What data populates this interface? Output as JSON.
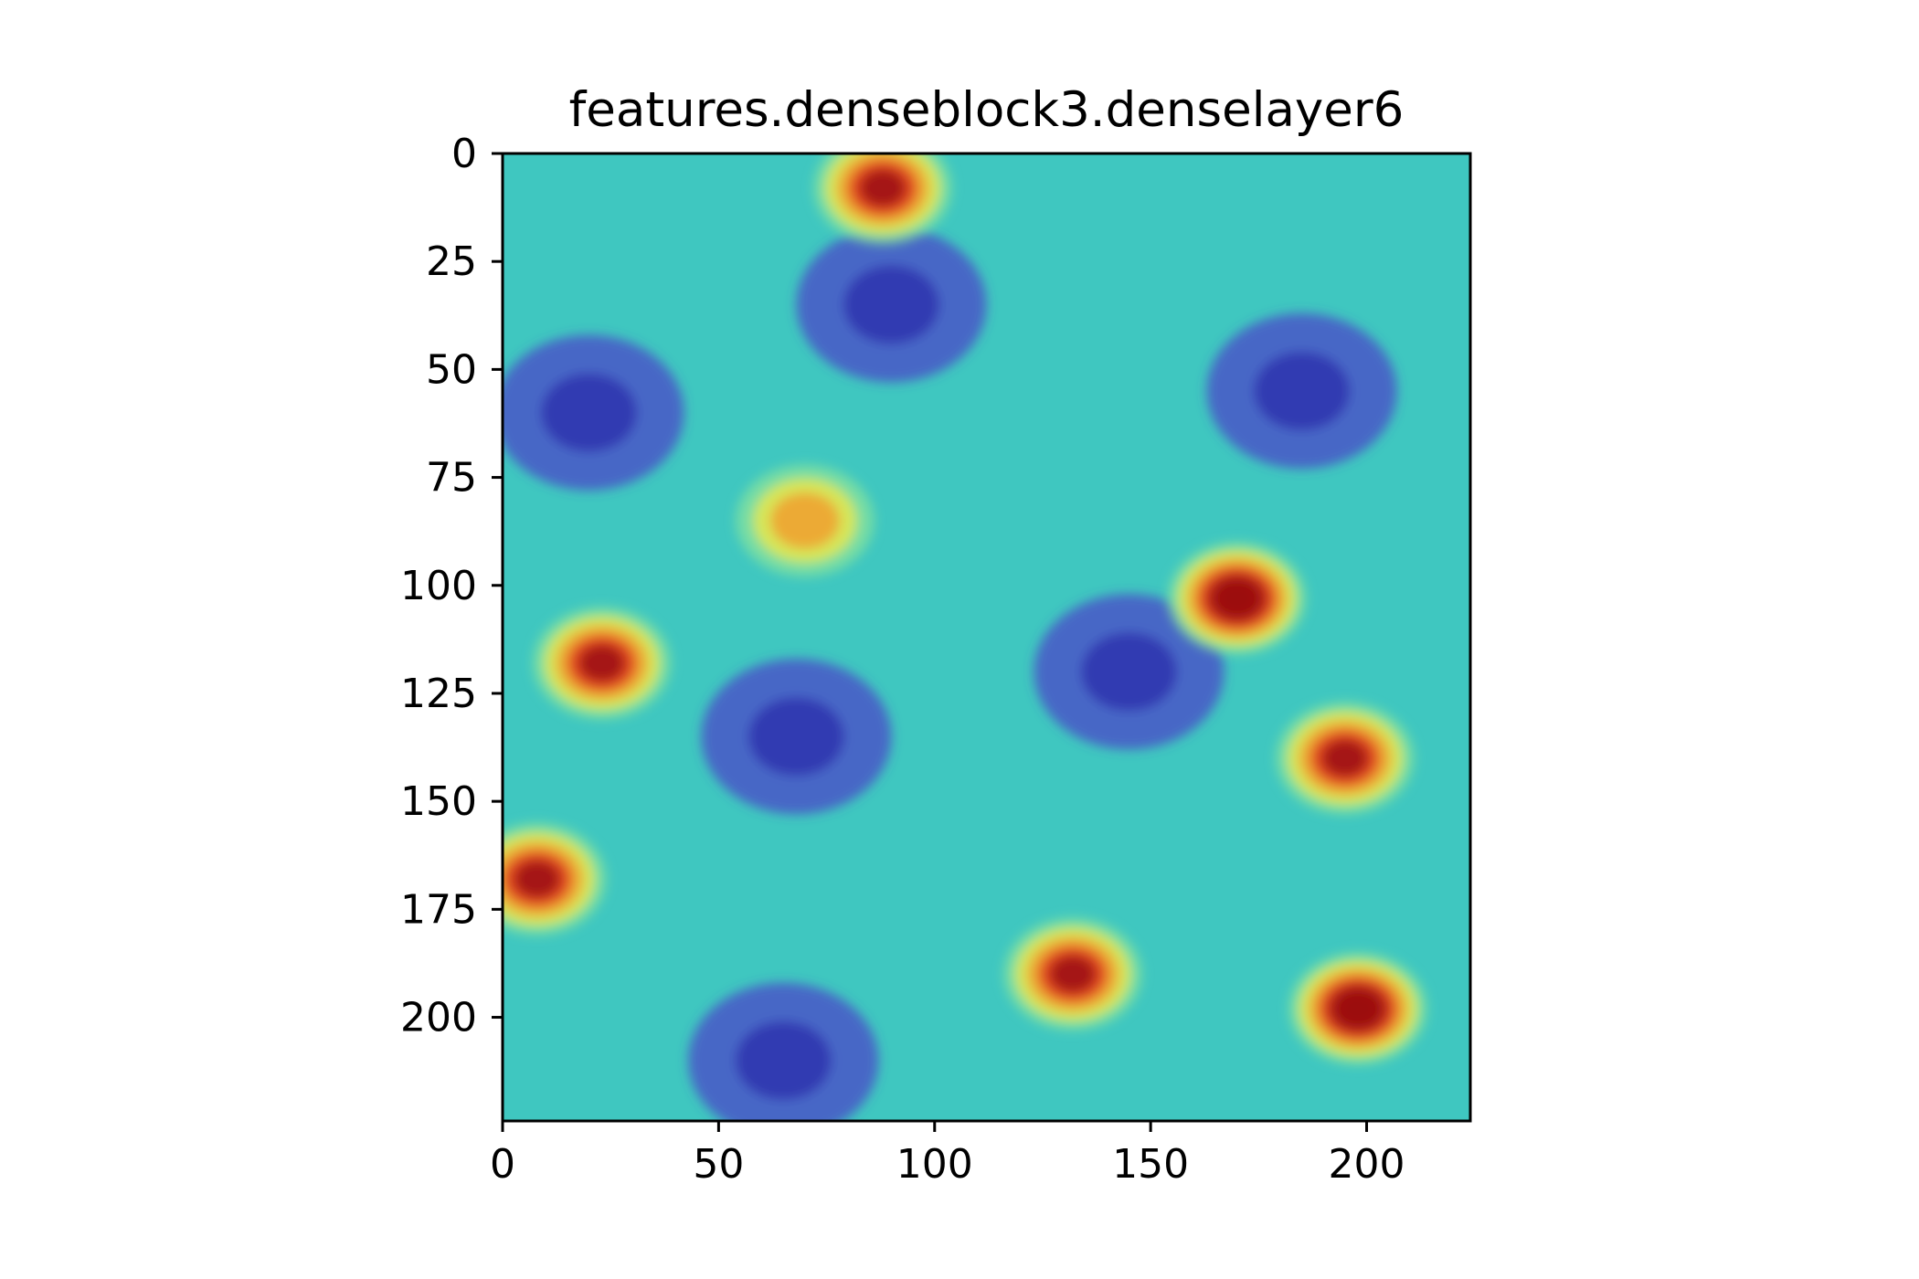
{
  "chart_data": {
    "type": "heatmap",
    "title": "features.denseblock3.denselayer6",
    "xlabel": "",
    "ylabel": "",
    "xlim": [
      0,
      224
    ],
    "ylim": [
      224,
      0
    ],
    "x_ticks": [
      0,
      50,
      100,
      150,
      200
    ],
    "y_ticks": [
      0,
      25,
      50,
      75,
      100,
      125,
      150,
      175,
      200
    ],
    "grid": false,
    "legend": "none",
    "colormap": "jet",
    "hotspots": [
      {
        "x": 170,
        "y": 103,
        "intensity": 1.0
      },
      {
        "x": 198,
        "y": 198,
        "intensity": 0.95
      },
      {
        "x": 23,
        "y": 118,
        "intensity": 0.85
      },
      {
        "x": 132,
        "y": 190,
        "intensity": 0.8
      },
      {
        "x": 195,
        "y": 140,
        "intensity": 0.8
      },
      {
        "x": 8,
        "y": 168,
        "intensity": 0.75
      },
      {
        "x": 88,
        "y": 8,
        "intensity": 0.75
      },
      {
        "x": 70,
        "y": 85,
        "intensity": 0.55
      }
    ],
    "coldspots": [
      {
        "x": 68,
        "y": 135
      },
      {
        "x": 90,
        "y": 35
      },
      {
        "x": 65,
        "y": 210
      },
      {
        "x": 145,
        "y": 120
      },
      {
        "x": 20,
        "y": 60
      },
      {
        "x": 185,
        "y": 55
      }
    ]
  }
}
